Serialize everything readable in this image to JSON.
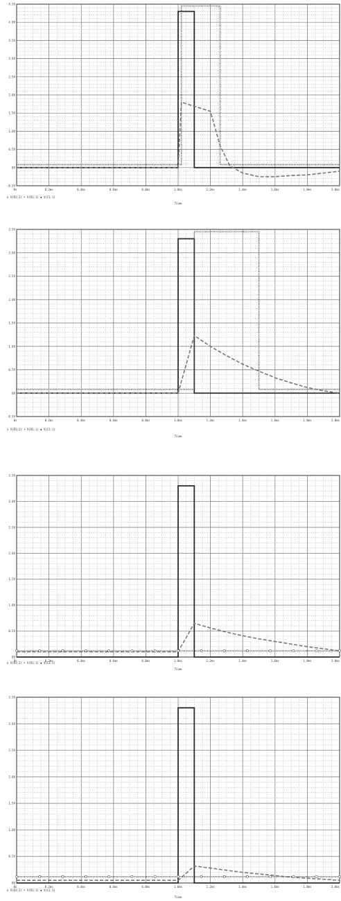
{
  "chart_data": [
    {
      "type": "line",
      "xlabel": "Time",
      "xlim": [
        0,
        2.0
      ],
      "ylim": [
        -0.5,
        4.5
      ],
      "x_ticks": [
        "0s",
        "0.2ms",
        "0.4ms",
        "0.6ms",
        "0.8ms",
        "1.0ms",
        "1.2ms",
        "1.4ms",
        "1.6ms",
        "1.8ms",
        "2.0ms"
      ],
      "y_ticks": [
        "-0.5V",
        "0V",
        "0.5V",
        "1.0V",
        "1.5V",
        "2.0V",
        "2.5V",
        "3.0V",
        "3.5V",
        "4.0V",
        "4.5V"
      ],
      "legend_text": "o V(R1:2)  • V(R1:1)  ◆ V(C1:1)",
      "grid": true,
      "series": [
        {
          "style": "solid",
          "x": [
            0,
            1.0,
            1.0,
            1.1,
            1.1,
            2.0
          ],
          "y": [
            0,
            0,
            4.3,
            4.3,
            0,
            0
          ]
        },
        {
          "style": "dotted",
          "x": [
            0,
            1.02,
            1.02,
            1.26,
            1.26,
            2.0
          ],
          "y": [
            0.08,
            0.08,
            4.45,
            4.45,
            0.08,
            0.08
          ]
        },
        {
          "style": "dashed",
          "x": [
            0,
            1.0,
            1.02,
            1.2,
            1.26,
            1.32,
            1.4,
            1.5,
            1.6,
            1.7,
            1.8,
            1.9,
            2.0
          ],
          "y": [
            0,
            0,
            1.8,
            1.55,
            0.6,
            0.05,
            -0.15,
            -0.25,
            -0.25,
            -0.22,
            -0.2,
            -0.15,
            -0.1
          ]
        }
      ]
    },
    {
      "type": "line",
      "xlabel": "Time",
      "xlim": [
        0,
        2.0
      ],
      "ylim": [
        -0.5,
        3.5
      ],
      "x_ticks": [
        "0s",
        "0.2ms",
        "0.4ms",
        "0.6ms",
        "0.8ms",
        "1.0ms",
        "1.2ms",
        "1.4ms",
        "1.6ms",
        "1.8ms",
        "2.0ms"
      ],
      "y_ticks": [
        "-0.5V",
        "0V",
        "0.5V",
        "1.0V",
        "1.5V",
        "2.0V",
        "2.5V",
        "3.0V",
        "3.5V"
      ],
      "legend_text": "o V(R1:2)  • V(R1:1)  ◆ V(C1:1)",
      "grid": true,
      "series": [
        {
          "style": "solid",
          "x": [
            0,
            1.0,
            1.0,
            1.1,
            1.1,
            2.0
          ],
          "y": [
            0,
            0,
            3.3,
            3.3,
            0,
            0
          ]
        },
        {
          "style": "dotted",
          "x": [
            0,
            1.1,
            1.1,
            1.5,
            1.5,
            2.0
          ],
          "y": [
            0.08,
            0.08,
            3.45,
            3.45,
            0.08,
            0.08
          ]
        },
        {
          "style": "dashed",
          "x": [
            0,
            1.0,
            1.1,
            1.2,
            1.3,
            1.4,
            1.5,
            1.6,
            1.7,
            1.8,
            1.9,
            2.0
          ],
          "y": [
            0,
            0,
            1.23,
            1.0,
            0.8,
            0.62,
            0.47,
            0.33,
            0.22,
            0.12,
            0.05,
            0.0
          ]
        }
      ]
    },
    {
      "type": "line",
      "xlabel": "Time",
      "xlim": [
        0,
        2.0
      ],
      "ylim": [
        0,
        3.5
      ],
      "x_ticks": [
        "0s",
        "0.2ms",
        "0.4ms",
        "0.6ms",
        "0.8ms",
        "1.0ms",
        "1.2ms",
        "1.4ms",
        "1.6ms",
        "1.8ms",
        "2.0ms"
      ],
      "y_ticks": [
        "0V",
        "0.5V",
        "1.0V",
        "1.5V",
        "2.0V",
        "2.5V",
        "3.0V",
        "3.5V"
      ],
      "legend_text": "o V(R1:2)  • V(R1:1)  ◆ V(C1:1)",
      "grid": true,
      "series": [
        {
          "style": "solid",
          "x": [
            0,
            1.0,
            1.0,
            1.1,
            1.1,
            2.0
          ],
          "y": [
            0,
            0,
            3.3,
            3.3,
            0,
            0
          ]
        },
        {
          "style": "dashed",
          "x": [
            0,
            1.0,
            1.1,
            1.2,
            1.3,
            1.4,
            1.5,
            1.6,
            1.7,
            1.8,
            1.9,
            2.0
          ],
          "y": [
            0.1,
            0.1,
            0.65,
            0.56,
            0.48,
            0.41,
            0.35,
            0.3,
            0.25,
            0.2,
            0.16,
            0.12
          ]
        },
        {
          "style": "dotted-circles",
          "x": [
            0,
            2.0
          ],
          "y": [
            0.12,
            0.12
          ]
        }
      ]
    },
    {
      "type": "line",
      "xlabel": "Time",
      "xlim": [
        0,
        2.0
      ],
      "ylim": [
        0,
        3.5
      ],
      "x_ticks": [
        "0s",
        "0.2ms",
        "0.4ms",
        "0.6ms",
        "0.8ms",
        "1.0ms",
        "1.2ms",
        "1.4ms",
        "1.6ms",
        "1.8ms",
        "2.0ms"
      ],
      "y_ticks": [
        "0V",
        "0.5V",
        "1.0V",
        "1.5V",
        "2.0V",
        "2.5V",
        "3.0V",
        "3.5V"
      ],
      "legend_text": "o V(R1:2)  • V(R1:1)  ◆ V(C1:1)",
      "grid": true,
      "series": [
        {
          "style": "solid",
          "x": [
            0,
            1.0,
            1.0,
            1.1,
            1.1,
            2.0
          ],
          "y": [
            0,
            0,
            3.3,
            3.3,
            0,
            0
          ]
        },
        {
          "style": "dashed",
          "x": [
            0,
            1.0,
            1.1,
            1.2,
            1.3,
            1.4,
            1.5,
            1.6,
            1.7,
            1.8,
            1.9,
            2.0
          ],
          "y": [
            0.05,
            0.05,
            0.32,
            0.28,
            0.24,
            0.2,
            0.17,
            0.14,
            0.11,
            0.09,
            0.07,
            0.05
          ]
        },
        {
          "style": "dotted-circles",
          "x": [
            0,
            2.0
          ],
          "y": [
            0.12,
            0.12
          ]
        }
      ]
    }
  ]
}
